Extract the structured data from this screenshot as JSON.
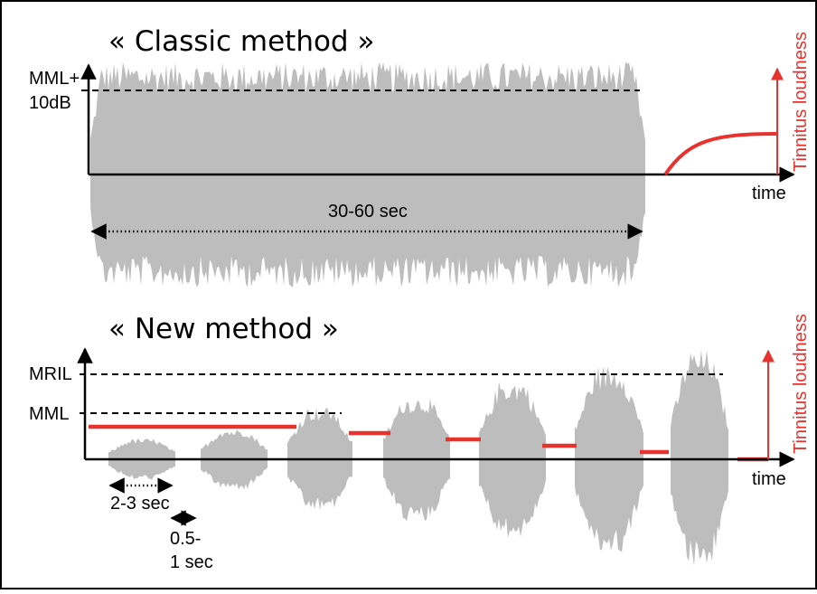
{
  "classic": {
    "title": "« Classic method »",
    "level_label_line1": "MML+",
    "level_label_line2": "10dB",
    "duration_label": "30-60 sec",
    "time_label": "time",
    "loudness_label": "Tinnitus loudness"
  },
  "new_method": {
    "title": "« New method »",
    "mril_label": "MRIL",
    "mml_label": "MML",
    "burst_duration_label": "2-3 sec",
    "gap_label_line1": "0.5-",
    "gap_label_line2": "1 sec",
    "time_label": "time",
    "loudness_label": "Tinnitus loudness",
    "burst_count": 7
  },
  "colors": {
    "waveform": "#bdbdbd",
    "axis": "#000000",
    "loudness": "#e8322d",
    "border": "#000000"
  }
}
